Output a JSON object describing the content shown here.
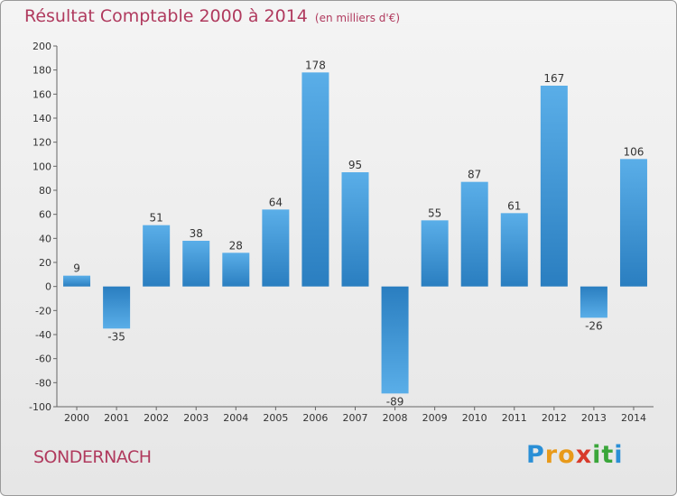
{
  "title": "Résultat Comptable 2000 à 2014",
  "title_unit": "(en milliers d'€)",
  "commune": "SONDERNACH",
  "logo": {
    "text": "Proxiti",
    "letters": [
      "P",
      "r",
      "o",
      "x",
      "i",
      "t",
      "i"
    ],
    "colors": [
      "#2a8fd6",
      "#e89a1a",
      "#e89a1a",
      "#d83a2a",
      "#3aa63a",
      "#3aa63a",
      "#2a8fd6"
    ]
  },
  "colors": {
    "bar_top": "#5aaee8",
    "bar_bottom": "#2a7ec0",
    "title": "#b03a5e"
  },
  "chart_data": {
    "type": "bar",
    "title": "Résultat Comptable 2000 à 2014",
    "ylabel": "en milliers d'€",
    "categories": [
      "2000",
      "2001",
      "2002",
      "2003",
      "2004",
      "2005",
      "2006",
      "2007",
      "2008",
      "2009",
      "2010",
      "2011",
      "2012",
      "2013",
      "2014"
    ],
    "values": [
      9,
      -35,
      51,
      38,
      28,
      64,
      178,
      95,
      -89,
      55,
      87,
      61,
      167,
      -26,
      106
    ],
    "ylim": [
      -100,
      200
    ],
    "yticks": [
      200,
      180,
      160,
      140,
      120,
      100,
      80,
      60,
      40,
      20,
      0,
      -20,
      -40,
      -60,
      -80,
      -100
    ],
    "grid": false
  }
}
